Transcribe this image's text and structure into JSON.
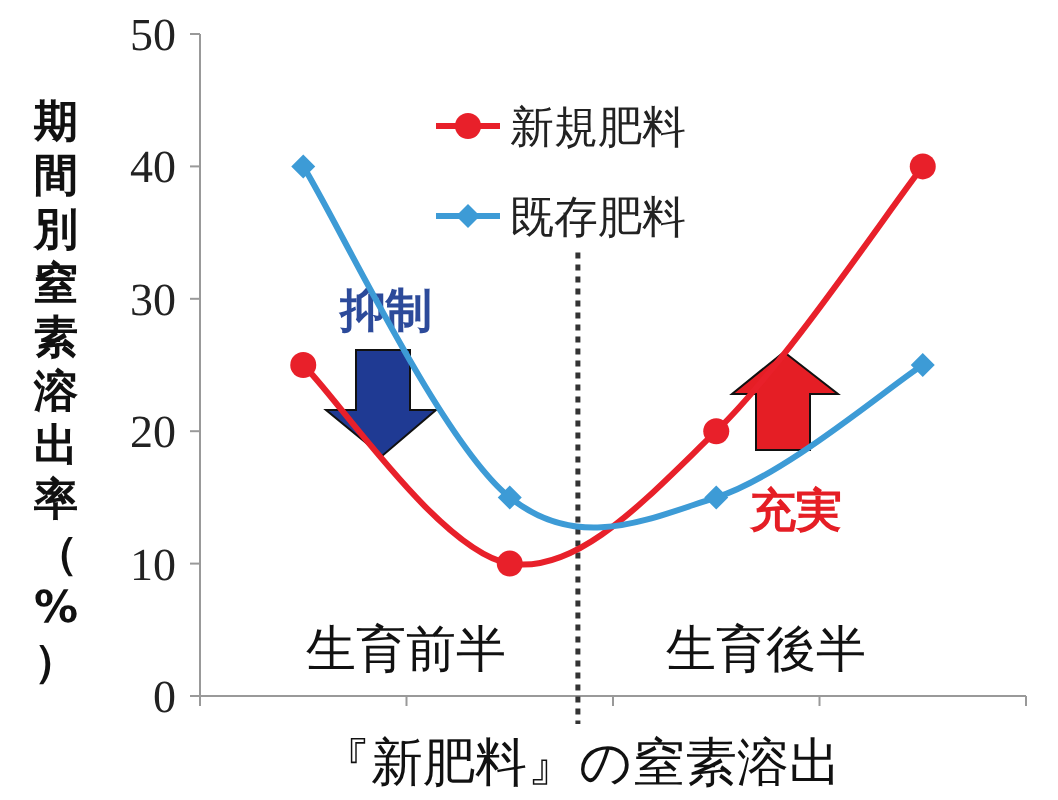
{
  "chart_data": {
    "type": "line",
    "xlabel": "『新肥料』の窒素溶出",
    "ylabel": "期間別窒素溶出率（%）",
    "categories": [
      null,
      null,
      null,
      null
    ],
    "series": [
      {
        "name": "新規肥料",
        "color": "#e8202a",
        "marker": "circle",
        "values": [
          25,
          10,
          20,
          40
        ]
      },
      {
        "name": "既存肥料",
        "color": "#3d9bd6",
        "marker": "diamond",
        "values": [
          40,
          15,
          15,
          25
        ]
      }
    ],
    "ylim": [
      0,
      50
    ],
    "yticks": [
      0,
      10,
      20,
      30,
      40,
      50
    ],
    "annotations": [
      "生育前半",
      "生育後半",
      "抑制",
      "充実"
    ],
    "legend": "top",
    "grid": false
  }
}
